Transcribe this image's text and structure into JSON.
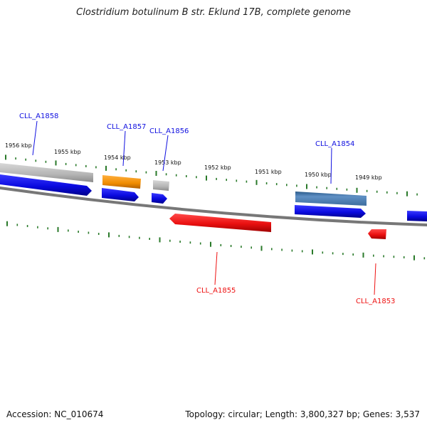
{
  "title": "Clostridium botulinum B str. Eklund 17B, complete genome",
  "scale_labels": [
    "1956 kbp",
    "1955 kbp",
    "1954 kbp",
    "1953 kbp",
    "1952 kbp",
    "1951 kbp",
    "1950 kbp",
    "1949 kbp"
  ],
  "genes": [
    {
      "locus": "CLL_A1858",
      "strand": "+",
      "color": "#1010e0"
    },
    {
      "locus": "CLL_A1857",
      "strand": "+",
      "color": "#1010e0"
    },
    {
      "locus": "CLL_A1856",
      "strand": "+",
      "color": "#1010e0"
    },
    {
      "locus": "CLL_A1855",
      "strand": "-",
      "color": "#ee1111"
    },
    {
      "locus": "CLL_A1854",
      "strand": "+",
      "color": "#1010e0"
    },
    {
      "locus": "CLL_A1853",
      "strand": "-",
      "color": "#ee1111"
    }
  ],
  "footer": {
    "accession": "Accession: NC_010674",
    "summary": "Topology: circular; Length: 3,800,327 bp; Genes: 3,537"
  },
  "colors": {
    "plus_strand": "#1010e0",
    "minus_strand": "#ee1111",
    "backbone": "#777777",
    "ticks": "#2a7a2a",
    "feature_gray": "#bbbbbb",
    "feature_orange": "#f08c00",
    "feature_steelblue": "#4f7fb0"
  }
}
